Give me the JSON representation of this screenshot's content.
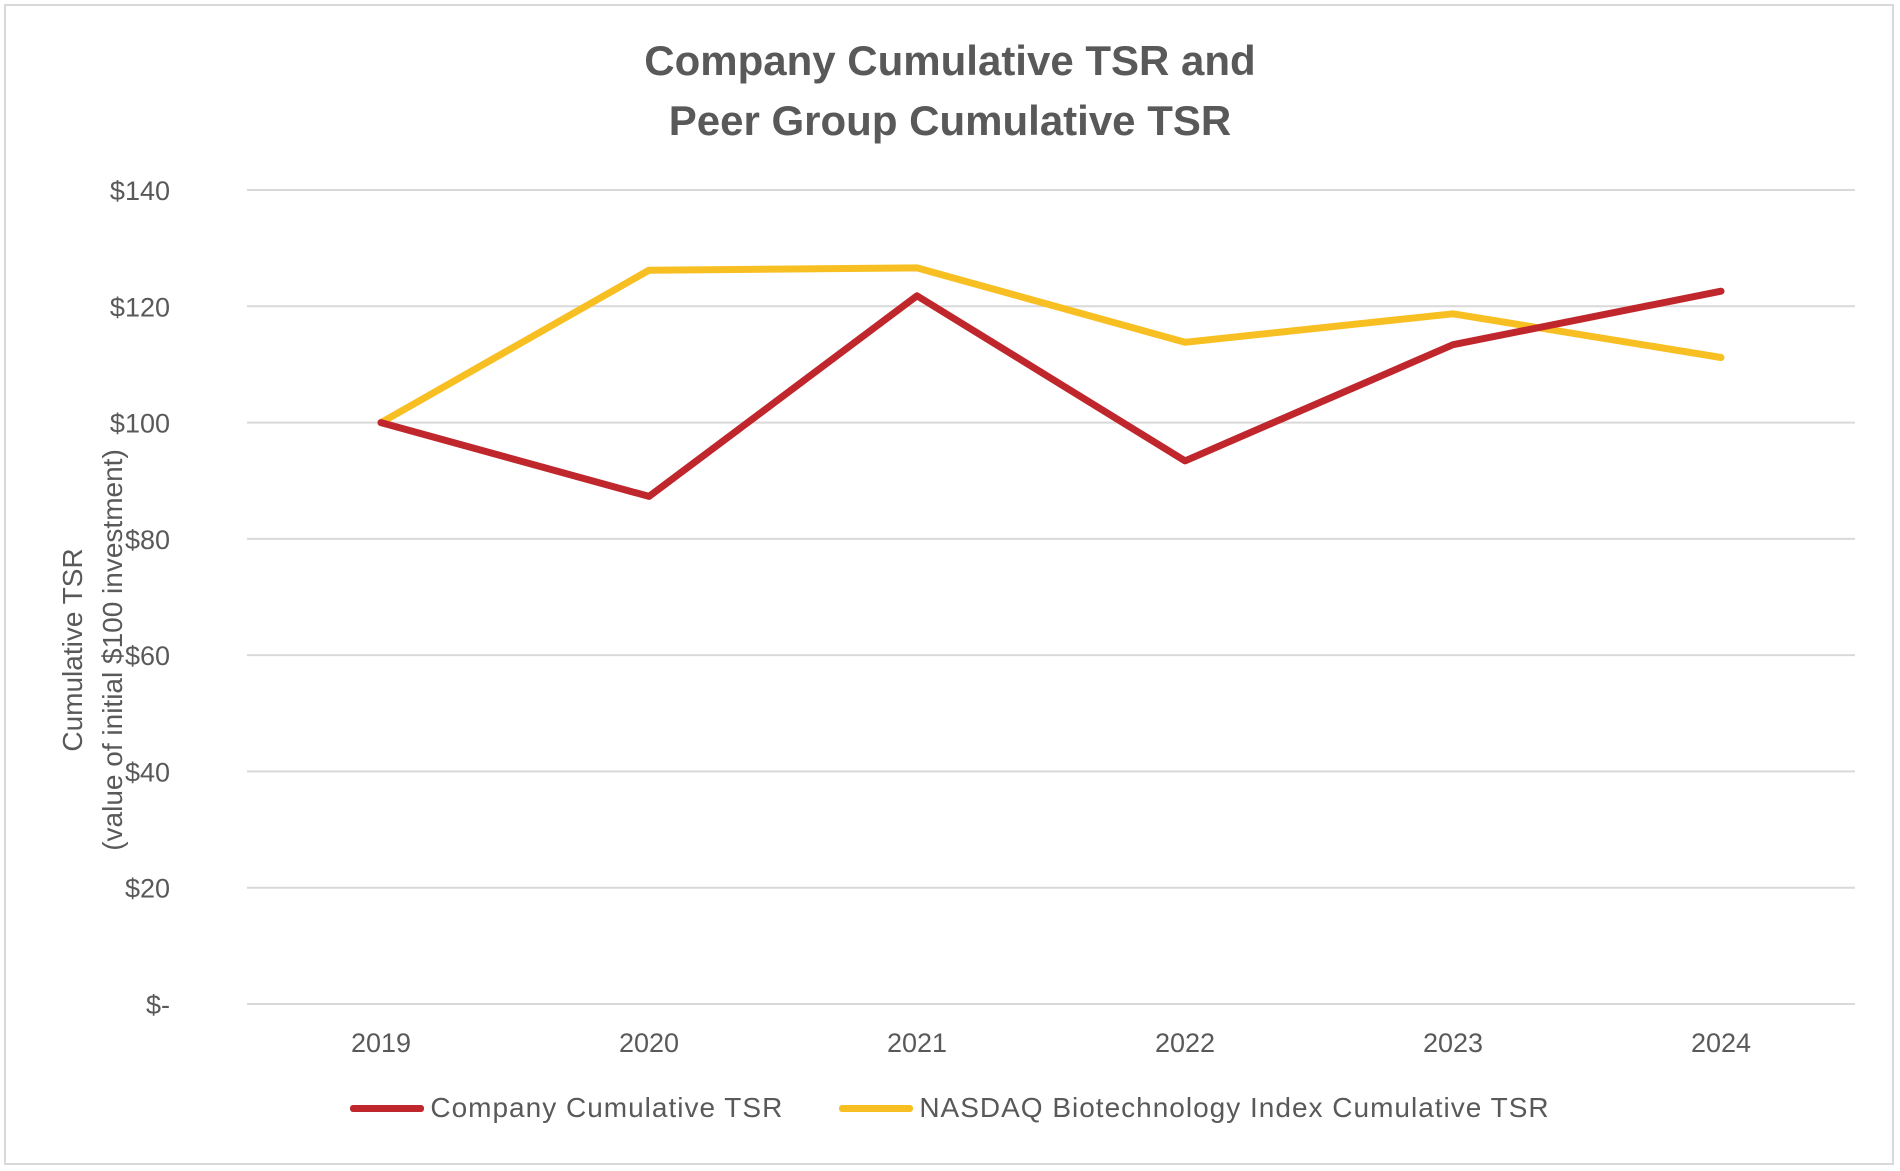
{
  "chart_data": {
    "type": "line",
    "title_lines": [
      "Company Cumulative TSR and",
      "Peer Group Cumulative TSR"
    ],
    "ylabel_lines": [
      "Cumulative TSR",
      "(value of initial $100 investment)"
    ],
    "xlabel": "",
    "categories": [
      "2019",
      "2020",
      "2021",
      "2022",
      "2023",
      "2024"
    ],
    "ylim": [
      0,
      140
    ],
    "yticks": [
      0,
      20,
      40,
      60,
      80,
      100,
      120,
      140
    ],
    "ytick_labels": [
      "$-",
      "$20",
      "$40",
      "$60",
      "$80",
      "$100",
      "$120",
      "$140"
    ],
    "grid": true,
    "legend_position": "bottom",
    "series": [
      {
        "name": "Company Cumulative TSR",
        "color": "#C0272D",
        "values": [
          100,
          87.3,
          121.8,
          93.4,
          113.4,
          122.6
        ]
      },
      {
        "name": "NASDAQ Biotechnology Index Cumulative TSR",
        "color": "#F8BF23",
        "values": [
          100,
          126.2,
          126.6,
          113.8,
          118.7,
          111.2
        ]
      }
    ]
  }
}
